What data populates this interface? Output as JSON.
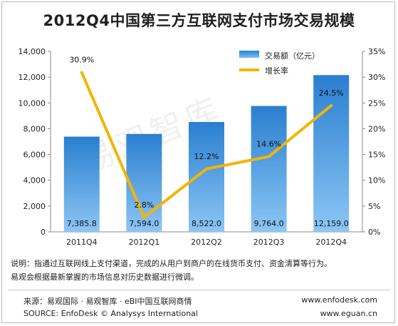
{
  "chart_data": {
    "type": "bar",
    "title": "2012Q4中国第三方互联网支付市场交易规模",
    "categories": [
      "2011Q4",
      "2012Q1",
      "2012Q2",
      "2012Q3",
      "2012Q4"
    ],
    "series": [
      {
        "name": "交易额（亿元）",
        "type": "bar",
        "axis": "left",
        "values": [
          7385.8,
          7594.0,
          8522.0,
          9764.0,
          12159.0
        ],
        "labels": [
          "7,385.8",
          "7,594.0",
          "8,522.0",
          "9,764.0",
          "12,159.0"
        ]
      },
      {
        "name": "增长率",
        "type": "line",
        "axis": "right",
        "values": [
          30.9,
          2.8,
          12.2,
          14.6,
          24.5
        ],
        "labels": [
          "30.9%",
          "2.8%",
          "12.2%",
          "14.6%",
          "24.5%"
        ]
      }
    ],
    "ylim": [
      0,
      14000
    ],
    "y2lim": [
      0,
      35
    ],
    "yticks": [
      "0",
      "2,000",
      "4,000",
      "6,000",
      "8,000",
      "10,000",
      "12,000",
      "14,000"
    ],
    "y2ticks": [
      "0%",
      "5%",
      "10%",
      "15%",
      "20%",
      "25%",
      "30%",
      "35%"
    ],
    "legend": "top-right",
    "grid": false,
    "colors": {
      "bar": "#2a82d4",
      "line": "#f4b400"
    }
  },
  "watermark": "易观智库",
  "note": {
    "line1": "说明：指通过互联网线上支付渠道，完成的从用户到商户的在线货币支付、资金清算等行为。",
    "line2": "易观会根据最新掌握的市场信息对历史数据进行微调。"
  },
  "footer": {
    "source_cn_label": "来源：",
    "source_cn": "易观国际 · 易观智库 · eBI中国互联网商情",
    "source_en_label": "SOURCE:",
    "source_en": "EnfoDesk © Analysys International",
    "site1": "www.enfodesk.com",
    "site2": "www.eguan.cn"
  }
}
